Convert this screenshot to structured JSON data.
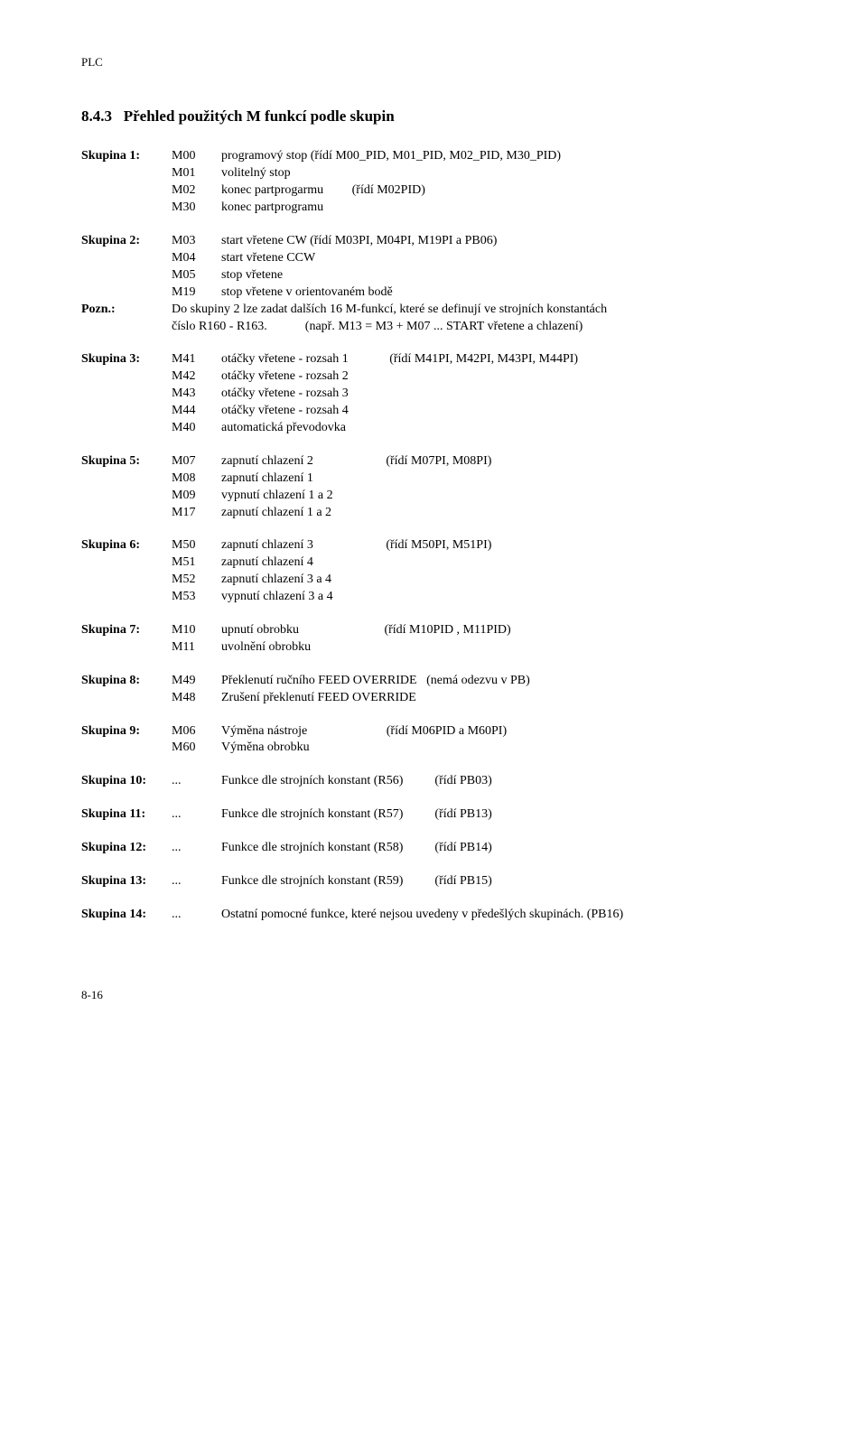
{
  "header": {
    "text": "PLC"
  },
  "section": {
    "number": "8.4.3",
    "title": "Přehled použitých M funkcí podle skupin"
  },
  "groups": [
    {
      "label": "Skupina 1:",
      "rows": [
        {
          "code": "M00",
          "desc": "programový stop (řídí M00_PID, M01_PID, M02_PID, M30_PID)"
        },
        {
          "code": "M01",
          "desc": "volitelný stop"
        },
        {
          "code": "M02",
          "desc": "konec partprogarmu         (řídí M02PID)"
        },
        {
          "code": "M30",
          "desc": "konec partprogramu"
        }
      ]
    },
    {
      "label": "Skupina 2:",
      "rows": [
        {
          "code": "M03",
          "desc": "start vřetene CW (řídí M03PI, M04PI, M19PI a PB06)"
        },
        {
          "code": "M04",
          "desc": "start vřetene CCW"
        },
        {
          "code": "M05",
          "desc": "stop vřetene"
        },
        {
          "code": "M19",
          "desc": "stop vřetene v orientovaném bodě"
        }
      ],
      "note_label": "Pozn.:",
      "note_lines": [
        "Do skupiny 2 lze zadat dalších 16 M-funkcí, které se definují ve strojních konstantách",
        "číslo R160 - R163.            (např. M13 = M3 + M07 ... START vřetene a chlazení)"
      ]
    },
    {
      "label": "Skupina 3:",
      "rows": [
        {
          "code": "M41",
          "desc": "otáčky vřetene - rozsah 1             (řídí M41PI, M42PI, M43PI, M44PI)"
        },
        {
          "code": "M42",
          "desc": "otáčky vřetene - rozsah 2"
        },
        {
          "code": "M43",
          "desc": "otáčky vřetene - rozsah 3"
        },
        {
          "code": "M44",
          "desc": "otáčky vřetene - rozsah 4"
        },
        {
          "code": "M40",
          "desc": "automatická převodovka"
        }
      ]
    },
    {
      "label": "Skupina 5:",
      "rows": [
        {
          "code": "M07",
          "desc": "zapnutí chlazení 2                       (řídí M07PI, M08PI)"
        },
        {
          "code": "M08",
          "desc": "zapnutí chlazení 1"
        },
        {
          "code": "M09",
          "desc": "vypnutí chlazení 1 a 2"
        },
        {
          "code": "M17",
          "desc": "zapnutí chlazení 1 a 2"
        }
      ]
    },
    {
      "label": "Skupina 6:",
      "rows": [
        {
          "code": "M50",
          "desc": "zapnutí chlazení 3                       (řídí M50PI, M51PI)"
        },
        {
          "code": "M51",
          "desc": "zapnutí chlazení 4"
        },
        {
          "code": "M52",
          "desc": "zapnutí chlazení 3 a 4"
        },
        {
          "code": "M53",
          "desc": "vypnutí chlazení 3 a 4"
        }
      ]
    },
    {
      "label": "Skupina 7:",
      "rows": [
        {
          "code": "M10",
          "desc": "upnutí obrobku                           (řídí M10PID , M11PID)"
        },
        {
          "code": "M11",
          "desc": "uvolnění obrobku"
        }
      ]
    },
    {
      "label": "Skupina 8:",
      "rows": [
        {
          "code": "M49",
          "desc": "Překlenutí ručního FEED OVERRIDE   (nemá odezvu v PB)"
        },
        {
          "code": "M48",
          "desc": "Zrušení překlenutí FEED OVERRIDE"
        }
      ]
    },
    {
      "label": "Skupina 9:",
      "rows": [
        {
          "code": "M06",
          "desc": "Výměna nástroje                         (řídí M06PID a M60PI)"
        },
        {
          "code": "M60",
          "desc": "Výměna obrobku"
        }
      ]
    },
    {
      "label": "Skupina 10:",
      "rows": [
        {
          "code": "...",
          "desc": "Funkce dle strojních konstant (R56)          (řídí PB03)"
        }
      ]
    },
    {
      "label": "Skupina 11:",
      "rows": [
        {
          "code": "...",
          "desc": "Funkce dle strojních konstant (R57)          (řídí PB13)"
        }
      ]
    },
    {
      "label": "Skupina 12:",
      "rows": [
        {
          "code": "...",
          "desc": "Funkce dle strojních konstant (R58)          (řídí PB14)"
        }
      ]
    },
    {
      "label": "Skupina 13:",
      "rows": [
        {
          "code": "...",
          "desc": "Funkce dle strojních konstant (R59)          (řídí PB15)"
        }
      ]
    },
    {
      "label": "Skupina 14:",
      "rows": [
        {
          "code": "...",
          "desc": "Ostatní pomocné funkce, které nejsou uvedeny v předešlých skupinách. (PB16)"
        }
      ]
    }
  ],
  "footer": {
    "text": "8-16"
  }
}
